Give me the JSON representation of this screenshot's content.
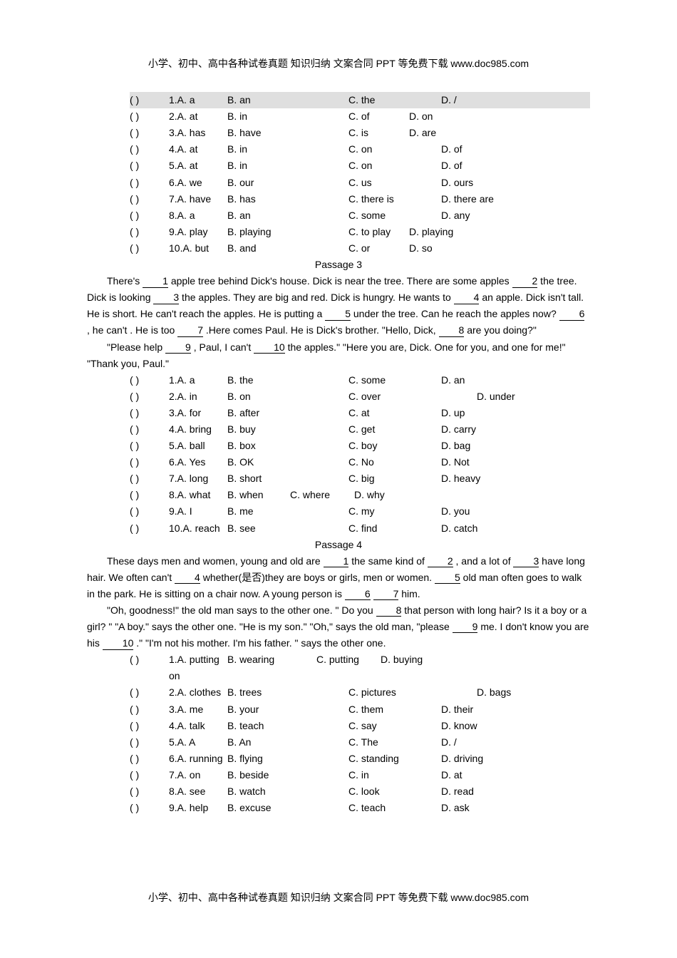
{
  "header_footer": "小学、初中、高中各种试卷真题 知识归纳 文案合同 PPT 等免费下载  www.doc985.com",
  "passage2_questions": [
    {
      "n": "1",
      "a": "A. a",
      "b": "B. an",
      "c": "C. the",
      "d": "D. /",
      "cpad": 130
    },
    {
      "n": "2",
      "a": "A. at",
      "b": "B. in",
      "c": "C. of",
      "d": "D. on",
      "cpad": 85
    },
    {
      "n": "3",
      "a": "A. has",
      "b": "B. have",
      "c": "C. is",
      "d": "D. are",
      "cpad": 85
    },
    {
      "n": "4",
      "a": "A. at",
      "b": "B. in",
      "c": "C. on",
      "d": "D. of",
      "cpad": 130
    },
    {
      "n": "5",
      "a": "A. at",
      "b": "B. in",
      "c": "C. on",
      "d": "D. of",
      "cpad": 130
    },
    {
      "n": "6",
      "a": "A. we",
      "b": "B. our",
      "c": "C. us",
      "d": "D. ours",
      "cpad": 130
    },
    {
      "n": "7",
      "a": "A. have",
      "b": "B. has",
      "c": "C. there is",
      "d": "D. there are",
      "cpad": 130
    },
    {
      "n": "8",
      "a": "A. a",
      "b": "B. an",
      "c": "C. some",
      "d": "D. any",
      "cpad": 130
    },
    {
      "n": "9",
      "a": "A. play",
      "b": "B. playing",
      "c": "C. to play",
      "d": "D. playing",
      "cpad": 85
    },
    {
      "n": "10",
      "a": "A. but",
      "b": "B. and",
      "c": "C. or",
      "d": "D. so",
      "cpad": 85
    }
  ],
  "passage3": {
    "title": "Passage  3",
    "text_parts": [
      "There's ",
      "1",
      " apple tree behind Dick's house. Dick is near the tree. There are some apples ",
      "2",
      " the tree. Dick is looking ",
      "3",
      " the apples. They are big and red. Dick is hungry. He wants to ",
      "4",
      " an apple. Dick isn't tall. He is short. He can't reach the apples. He is putting a ",
      "5",
      " under the tree. Can he reach the apples now? ",
      "6",
      " , he can't . He is too ",
      "7",
      " .Here comes Paul. He is Dick's brother. \"Hello, Dick, ",
      "8",
      " are you doing?\""
    ],
    "para2": [
      "\"Please help ",
      "9",
      " , Paul, I can't ",
      "10",
      " the apples.\" \"Here you are, Dick. One for you, and one for me!\" \"Thank you, Paul.\""
    ]
  },
  "passage3_questions": [
    {
      "n": "1",
      "a": "A. a",
      "b": "B. the",
      "c": "C. some",
      "d": "D. an",
      "cpad": 130
    },
    {
      "n": "2",
      "a": "A. in",
      "b": "B. on",
      "c": "C. over",
      "d": "D. under",
      "cpad": 180
    },
    {
      "n": "3",
      "a": "A. for",
      "b": "B. after",
      "c": "C. at",
      "d": "D. up",
      "cpad": 130
    },
    {
      "n": "4",
      "a": "A. bring",
      "b": "B. buy",
      "c": "C. get",
      "d": "D. carry",
      "cpad": 130
    },
    {
      "n": "5",
      "a": "A. ball",
      "b": "B. box",
      "c": "C. boy",
      "d": "D. bag",
      "cpad": 130
    },
    {
      "n": "6",
      "a": "A. Yes",
      "b": "B. OK",
      "c": "C. No",
      "d": "D. Not",
      "cpad": 130
    },
    {
      "n": "7",
      "a": "A. long",
      "b": "B. short",
      "c": "C. big",
      "d": "D. heavy",
      "cpad": 130
    },
    {
      "n": "8",
      "a": "A. what",
      "b": "B. when",
      "c": "C. where",
      "d": "D. why",
      "bwidth": 88,
      "cpad": 90
    },
    {
      "n": "9",
      "a": "A. I",
      "b": "B. me",
      "c": "C. my",
      "d": "D. you",
      "cpad": 130
    },
    {
      "n": "10",
      "a": "A. reach",
      "b": "B. see",
      "c": "C. find",
      "d": "D. catch",
      "cpad": 130
    }
  ],
  "passage4": {
    "title": "Passage  4",
    "text_parts": [
      "These days men and women, young and old are ",
      "1",
      " the same kind of ",
      "2",
      " , and a lot of ",
      "3",
      " have long hair. We often can't ",
      "4",
      " whether(是否)they are boys or girls, men or women. ",
      "5",
      " old man often goes to walk in the park. He is sitting on a chair now. A young person is ",
      "6",
      " ",
      "7",
      " him."
    ],
    "para2": [
      "\"Oh, goodness!\" the old man says to the other one. \" Do you ",
      "8",
      " that person with long hair? Is it a boy or a girl? \" \"A boy.\" says the other one. \"He is my son.\" \"Oh,\" says the old man, \"please ",
      "9",
      " me. I don't know you are his ",
      "10",
      " .\" \"I'm not his mother. I'm his father. \" says the other one."
    ]
  },
  "passage4_questions": [
    {
      "n": "1",
      "a": "A. putting on",
      "b": "B. wearing",
      "c": "C. putting",
      "d": "D. buying",
      "bwidth": 125,
      "cpad": 90
    },
    {
      "n": "2",
      "a": "A. clothes",
      "b": "B. trees",
      "c": "C. pictures",
      "d": "D. bags",
      "cpad": 180
    },
    {
      "n": "3",
      "a": "A. me",
      "b": "B. your",
      "c": "C. them",
      "d": "D. their",
      "cpad": 130
    },
    {
      "n": "4",
      "a": "A. talk",
      "b": "B. teach",
      "c": "C. say",
      "d": "D. know",
      "cpad": 130
    },
    {
      "n": "5",
      "a": "A. A",
      "b": "B. An",
      "c": "C. The",
      "d": "D. /",
      "cpad": 130
    },
    {
      "n": "6",
      "a": "A. running",
      "b": "B. flying",
      "c": "C. standing",
      "d": "D. driving",
      "cpad": 130
    },
    {
      "n": "7",
      "a": "A. on",
      "b": "B. beside",
      "c": "C. in",
      "d": "D. at",
      "cpad": 130
    },
    {
      "n": "8",
      "a": "A. see",
      "b": "B. watch",
      "c": "C. look",
      "d": "D. read",
      "cpad": 130
    },
    {
      "n": "9",
      "a": "A. help",
      "b": "B. excuse",
      "c": "C. teach",
      "d": "D. ask",
      "cpad": 130
    }
  ]
}
